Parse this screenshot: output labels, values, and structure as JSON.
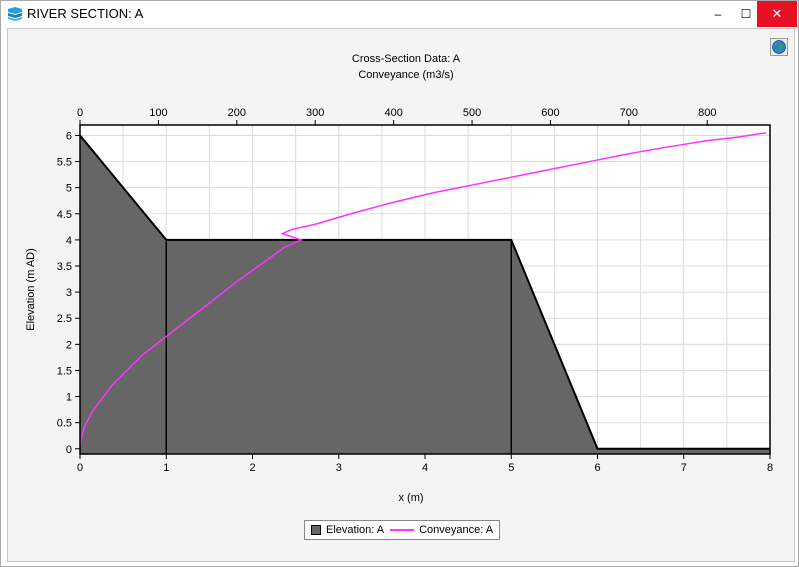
{
  "window": {
    "title": "RIVER SECTION: A",
    "controls": {
      "minimize": "–",
      "maximize": "☐",
      "close": "✕"
    }
  },
  "toolbar": {
    "globe_icon": "globe-icon"
  },
  "colors": {
    "elevation_fill": "#666666",
    "conveyance_line": "#ff33ff",
    "title_blue": "#1a1acc",
    "close_red": "#e81123"
  },
  "chart_data": {
    "type": "area",
    "title": "Cross-Section Data: A",
    "xlabel": "x (m)",
    "ylabel": "Elevation (m AD)",
    "x2label": "Conveyance (m3/s)",
    "xlim": [
      0,
      8
    ],
    "ylim": [
      -0.1,
      6.2
    ],
    "x2lim": [
      0,
      880
    ],
    "x_ticks": [
      0,
      1,
      2,
      3,
      4,
      5,
      6,
      7,
      8
    ],
    "y_ticks": [
      0,
      0.5,
      1,
      1.5,
      2,
      2.5,
      3,
      3.5,
      4,
      4.5,
      5,
      5.5,
      6
    ],
    "x2_ticks": [
      0,
      100,
      200,
      300,
      400,
      500,
      600,
      700,
      800
    ],
    "grid": true,
    "legend_position": "bottom-center",
    "series": [
      {
        "name": "Elevation: A",
        "kind": "area",
        "x": [
          0,
          1,
          5,
          6,
          8
        ],
        "y": [
          6,
          4,
          4,
          0,
          0
        ]
      },
      {
        "name": "Conveyance: A",
        "kind": "line",
        "axis": "top",
        "x": [
          0,
          5,
          15,
          40,
          80,
          140,
          200,
          260,
          282,
          258,
          270,
          300,
          350,
          400,
          450,
          500,
          550,
          600,
          650,
          700,
          750,
          800,
          840,
          875
        ],
        "y": [
          0.1,
          0.4,
          0.7,
          1.2,
          1.8,
          2.5,
          3.2,
          3.85,
          4.0,
          4.12,
          4.2,
          4.3,
          4.52,
          4.72,
          4.9,
          5.05,
          5.2,
          5.35,
          5.5,
          5.65,
          5.78,
          5.9,
          5.97,
          6.05
        ]
      }
    ]
  }
}
